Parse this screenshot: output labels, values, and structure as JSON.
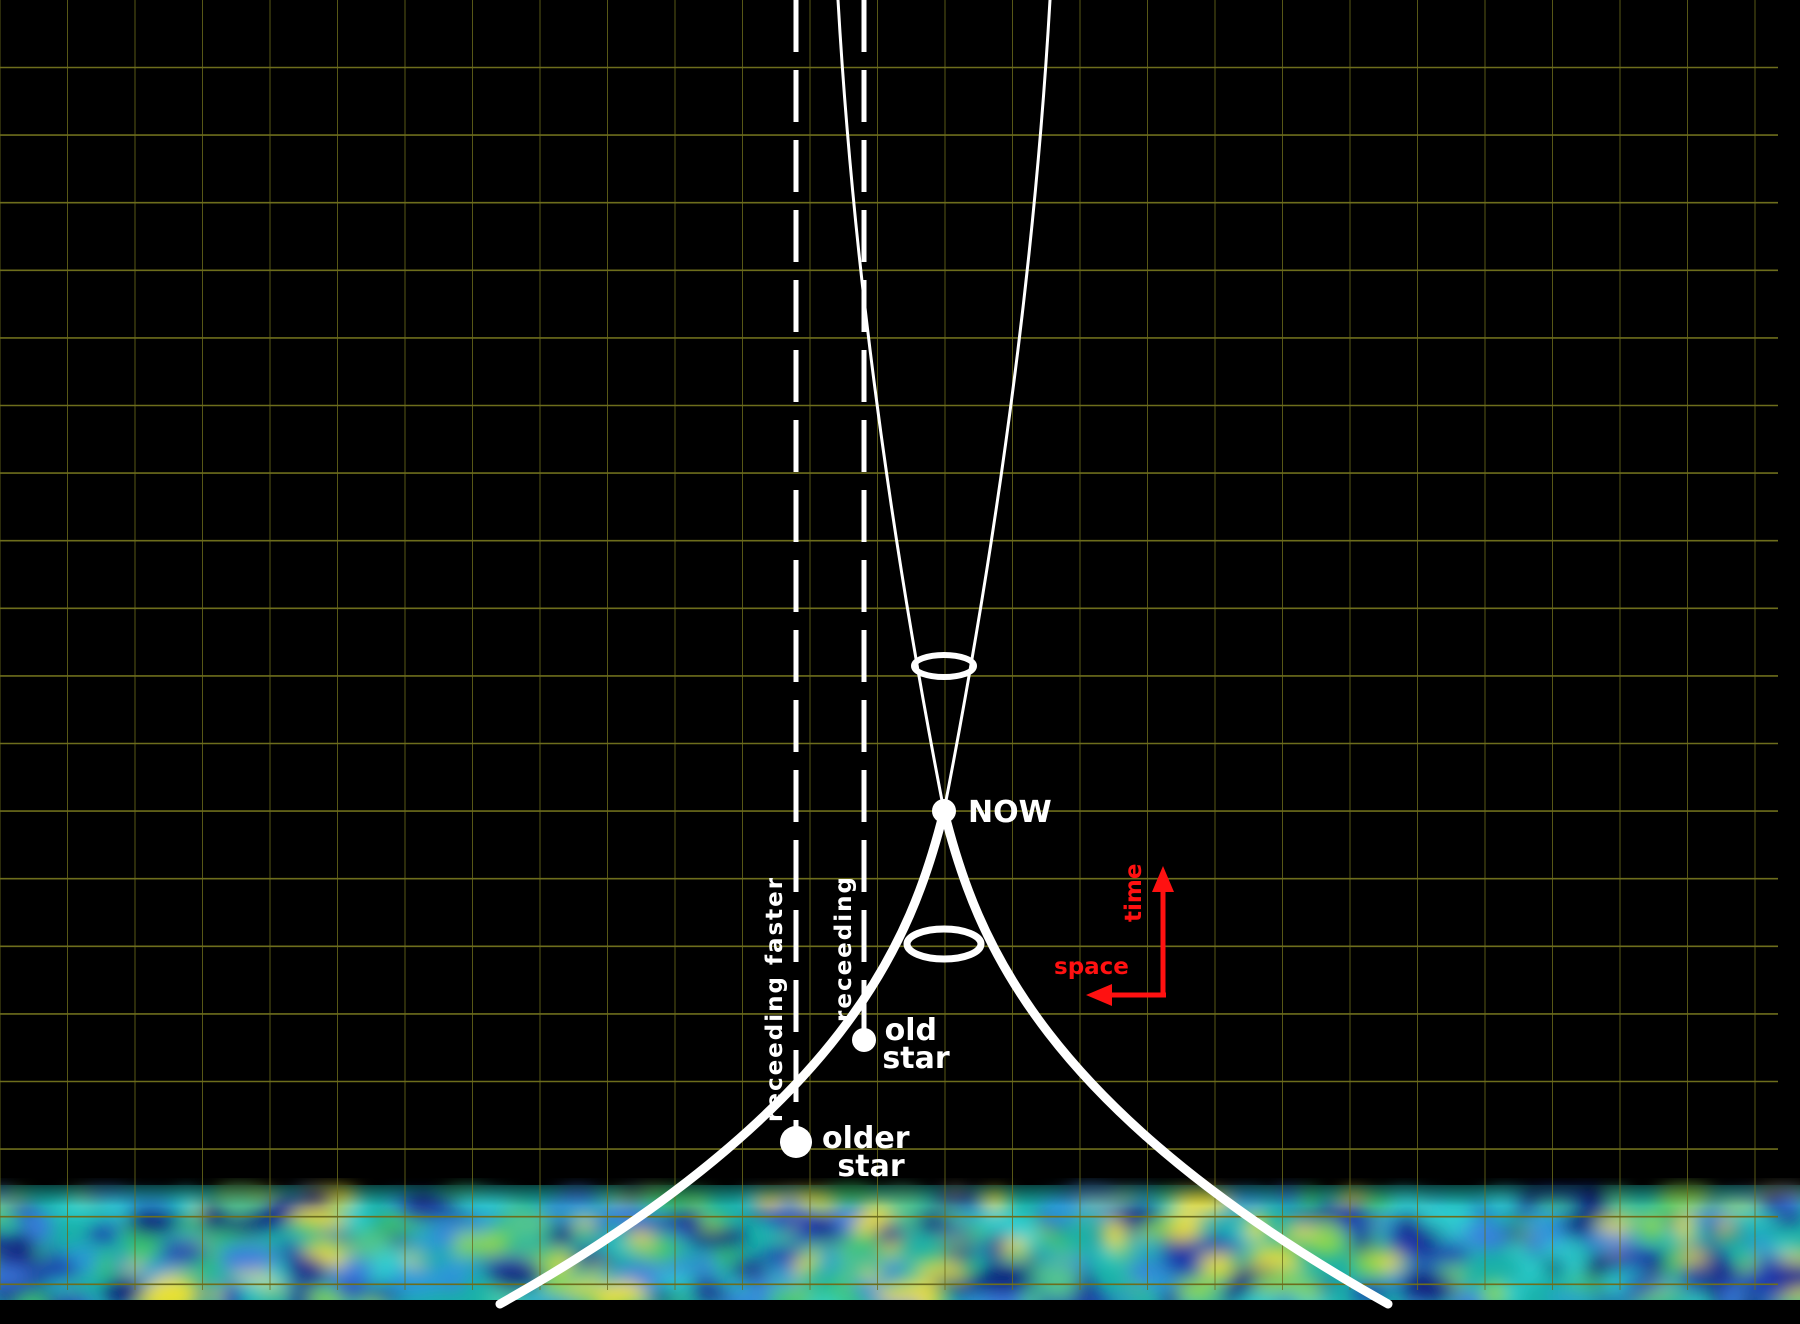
{
  "colors": {
    "background": "#000000",
    "grid": "#6d6d1c",
    "lines": "#ffffff",
    "axis_arrows": "#ff1111"
  },
  "labels": {
    "now": "NOW",
    "old_star": [
      "old",
      "star"
    ],
    "older_star": [
      "older",
      "star"
    ],
    "receding": "receeding",
    "receding_faster": "receeding faster",
    "time_axis": "time",
    "space_axis": "space"
  },
  "background_band": "cosmic-microwave-background-texture",
  "icons": {
    "time_arrow": "arrow-up-icon",
    "space_arrow": "arrow-left-icon"
  }
}
